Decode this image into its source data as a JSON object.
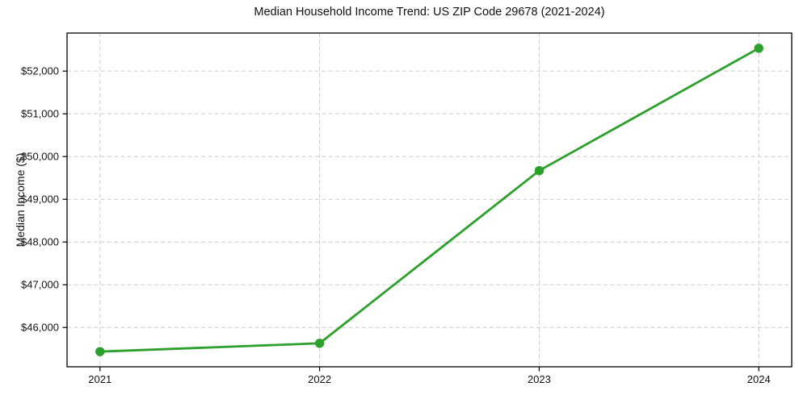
{
  "figure": {
    "title": "Median Household Income Trend: US ZIP Code 29678 (2021-2024)"
  },
  "chart_data": {
    "type": "line",
    "title": "Median Household Income Trend: US ZIP Code 29678 (2021-2024)",
    "xlabel": "",
    "ylabel": "Median Income ($)",
    "x": [
      2021,
      2022,
      2023,
      2024
    ],
    "series": [
      {
        "name": "Median Household Income",
        "values": [
          45435,
          45630,
          49670,
          52535
        ],
        "color": "#2ca02c",
        "marker": "circle"
      }
    ],
    "x_ticks": [
      2021,
      2022,
      2023,
      2024
    ],
    "x_tick_labels": [
      "2021",
      "2022",
      "2023",
      "2024"
    ],
    "y_ticks": [
      46000,
      47000,
      48000,
      49000,
      50000,
      51000,
      52000
    ],
    "y_tick_labels": [
      "$46,000",
      "$47,000",
      "$48,000",
      "$49,000",
      "$50,000",
      "$51,000",
      "$52,000"
    ],
    "xlim": [
      2020.85,
      2024.15
    ],
    "ylim": [
      45080,
      52890
    ],
    "grid": true,
    "grid_color": "#cdcdcd",
    "grid_dash": "5 3.3",
    "legend": "none",
    "background": "#ffffff",
    "spine_color": "#000000",
    "text_color": "#111111"
  }
}
